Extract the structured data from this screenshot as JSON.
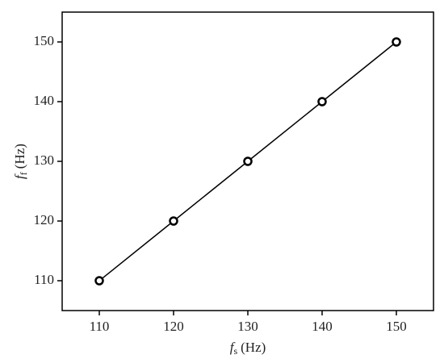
{
  "chart_data": {
    "type": "line",
    "xlabel": {
      "symbol": "f",
      "subscript": "s",
      "unit": "(Hz)"
    },
    "ylabel": {
      "symbol": "f",
      "subscript": "f",
      "unit": "(Hz)"
    },
    "x": [
      110,
      120,
      130,
      140,
      150
    ],
    "series": [
      {
        "color": "#000000",
        "values": [
          110,
          120,
          130,
          140,
          150
        ]
      }
    ],
    "xlim": [
      105,
      155
    ],
    "ylim": [
      105,
      155
    ],
    "xticks": [
      110,
      120,
      130,
      140,
      150
    ],
    "yticks": [
      110,
      120,
      130,
      140,
      150
    ],
    "grid": false
  }
}
